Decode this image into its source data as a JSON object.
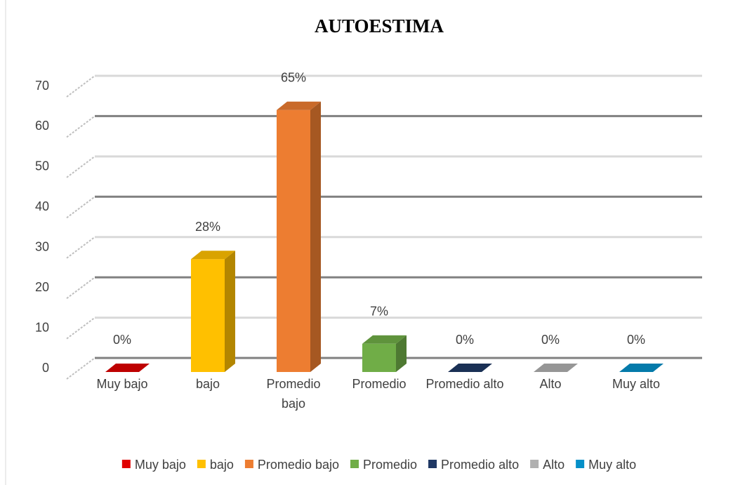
{
  "chart_data": {
    "type": "bar3d",
    "title": "AUTOESTIMA",
    "categories": [
      "Muy bajo",
      "bajo",
      "Promedio bajo",
      "Promedio",
      "Promedio alto",
      "Alto",
      "Muy alto"
    ],
    "values": [
      0,
      28,
      65,
      7,
      0,
      0,
      0
    ],
    "value_labels": [
      "0%",
      "28%",
      "65%",
      "7%",
      "0%",
      "0%",
      "0%"
    ],
    "colors": [
      "#e00000",
      "#ffc000",
      "#ed7d31",
      "#70ad47",
      "#1f3864",
      "#b0b0b0",
      "#0590c8"
    ],
    "ylim": [
      0,
      70
    ],
    "yticks": [
      0,
      10,
      20,
      30,
      40,
      50,
      60,
      70
    ],
    "grid": true,
    "legend": "bottom"
  }
}
